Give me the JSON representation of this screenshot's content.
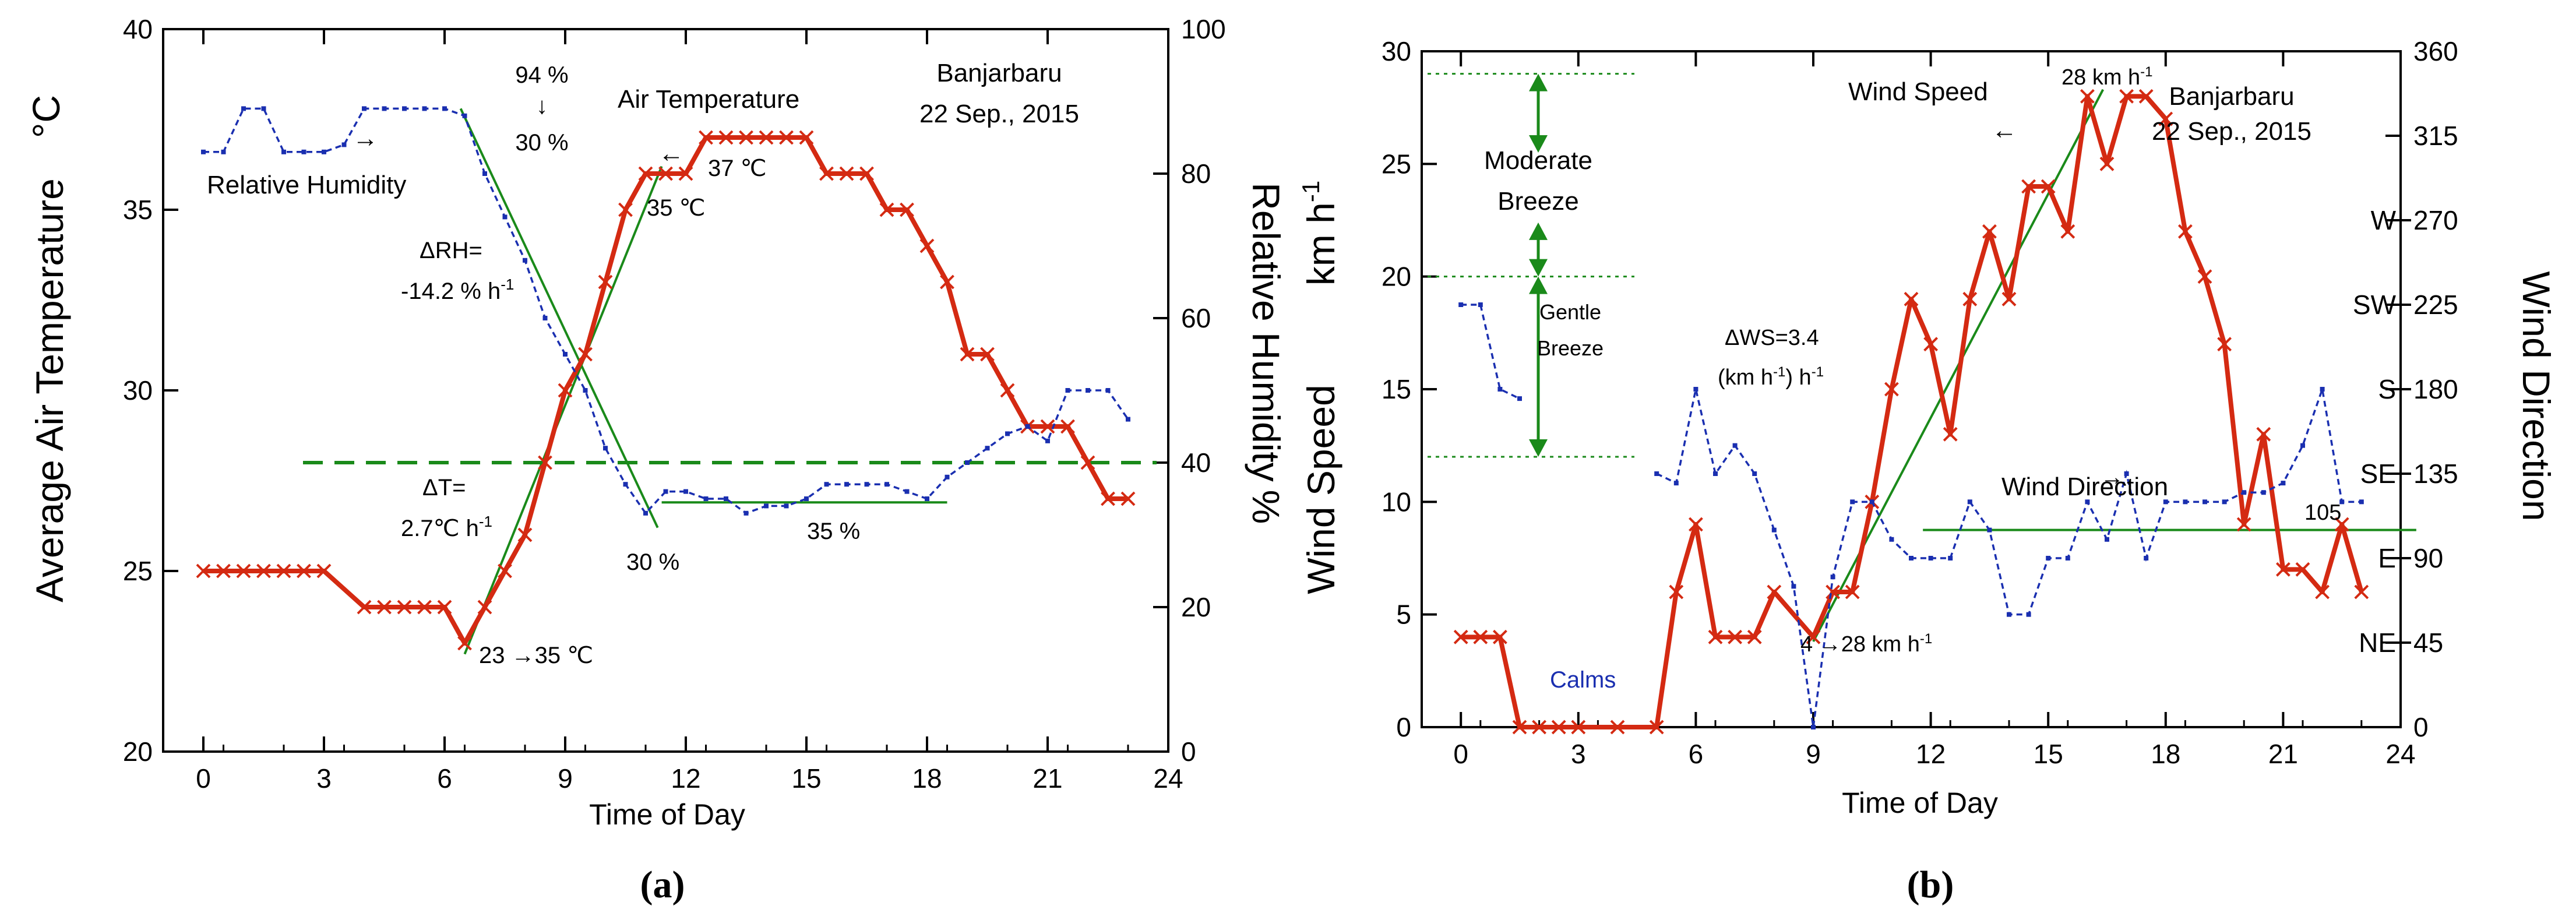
{
  "chart_data": [
    {
      "panel_label": "(a)",
      "type": "line",
      "x_label": "Time of Day",
      "y_left_label": "Average Air Temperature",
      "y_left_unit": "°C",
      "y_right_label": "Relative Humidity",
      "y_right_unit": "%",
      "xlim": [
        -1,
        24
      ],
      "ylim_left": [
        20,
        40
      ],
      "ylim_right": [
        0,
        100
      ],
      "x_ticks": [
        "0",
        "3",
        "6",
        "9",
        "12",
        "15",
        "18",
        "21",
        "24"
      ],
      "y_left_ticks": [
        "20",
        "25",
        "30",
        "35",
        "40"
      ],
      "y_right_ticks": [
        "0",
        "20",
        "40",
        "60",
        "80",
        "100"
      ],
      "location": "Banjarbaru",
      "date": "22 Sep., 2015",
      "series": [
        {
          "name": "Air Temperature",
          "axis": "left",
          "color": "#d42a12",
          "marker": "x",
          "x": [
            0,
            0.5,
            1,
            1.5,
            2,
            2.5,
            3,
            4,
            4.5,
            5,
            5.5,
            6,
            6.5,
            7,
            7.5,
            8,
            8.5,
            9,
            9.5,
            10,
            10.5,
            11,
            11.5,
            12,
            12.5,
            13,
            13.5,
            14,
            14.5,
            15,
            15.5,
            16,
            16.5,
            17,
            17.5,
            18,
            18.5,
            19,
            19.5,
            20,
            20.5,
            21,
            21.5,
            22,
            22.5,
            23
          ],
          "y": [
            25,
            25,
            25,
            25,
            25,
            25,
            25,
            24,
            24,
            24,
            24,
            24,
            23,
            24,
            25,
            26,
            28,
            30,
            31,
            33,
            35,
            36,
            36,
            36,
            37,
            37,
            37,
            37,
            37,
            37,
            36,
            36,
            36,
            35,
            35,
            34,
            33,
            31,
            31,
            30,
            29,
            29,
            29,
            28,
            27,
            27
          ]
        },
        {
          "name": "Relative Humidity",
          "axis": "right",
          "color": "#1a2fb0",
          "marker": "dot",
          "x": [
            0,
            0.5,
            1,
            1.5,
            2,
            2.5,
            3,
            3.5,
            4,
            4.5,
            5,
            5.5,
            6,
            6.5,
            7,
            7.5,
            8,
            8.5,
            9,
            9.5,
            10,
            10.5,
            11,
            11.5,
            12,
            12.5,
            13,
            13.5,
            14,
            14.5,
            15,
            15.5,
            16,
            16.5,
            17,
            17.5,
            18,
            18.5,
            19,
            19.5,
            20,
            20.5,
            21,
            21.5,
            22,
            22.5,
            23
          ],
          "y": [
            83,
            83,
            89,
            89,
            83,
            83,
            83,
            84,
            89,
            89,
            89,
            89,
            89,
            88,
            80,
            74,
            68,
            60,
            55,
            50,
            42,
            37,
            33,
            36,
            36,
            35,
            35,
            33,
            34,
            34,
            35,
            37,
            37,
            37,
            37,
            36,
            35,
            38,
            40,
            42,
            44,
            45,
            43,
            50,
            50,
            50,
            46
          ]
        }
      ],
      "reference_lines": [
        {
          "kind": "dashed",
          "color": "#1a8a1a",
          "y_left": 28
        }
      ],
      "annotations": {
        "relative_humidity": "Relative Humidity",
        "air_temperature": "Air Temperature",
        "rh_change_a": "94 %",
        "down_arrow": "↓",
        "rh_change_b": "30 %",
        "t_peak": "37 ℃",
        "t_35": "35 ℃",
        "d_rh_label": "ΔRH=",
        "d_rh_value": "-14.2 % h",
        "d_rh_exp": "-1",
        "d_t_label": "ΔT=",
        "d_t_value": "2.7℃ h",
        "d_t_exp": "-1",
        "rh_30": "30 %",
        "rh_35": "35 %",
        "t_range": "23 →35 ℃",
        "right_arrow": "→",
        "left_arrow": "←"
      }
    },
    {
      "panel_label": "(b)",
      "type": "line",
      "x_label": "Time of Day",
      "y_left_label": "Wind Speed",
      "y_left_unit": "km h",
      "y_left_unit_exp": "-1",
      "y_right_label": "Wind Direction",
      "xlim": [
        -1,
        24
      ],
      "ylim_left": [
        0,
        30
      ],
      "ylim_right": [
        0,
        360
      ],
      "x_ticks": [
        "0",
        "3",
        "6",
        "9",
        "12",
        "15",
        "18",
        "21",
        "24"
      ],
      "y_left_ticks": [
        "0",
        "5",
        "10",
        "15",
        "20",
        "25",
        "30"
      ],
      "y_right_ticks": [
        "0",
        "45",
        "90",
        "135",
        "180",
        "225",
        "270",
        "315",
        "360"
      ],
      "y_right_directions": [
        {
          "label": "NE",
          "value": 45
        },
        {
          "label": "E",
          "value": 90
        },
        {
          "label": "SE",
          "value": 135
        },
        {
          "label": "S",
          "value": 180
        },
        {
          "label": "SW",
          "value": 225
        },
        {
          "label": "W",
          "value": 270
        }
      ],
      "location": "Banjarbaru",
      "date": "22 Sep., 2015",
      "series": [
        {
          "name": "Wind Speed",
          "axis": "left",
          "color": "#d42a12",
          "marker": "x",
          "x": [
            0,
            0.5,
            1,
            1.5,
            2,
            2.5,
            3,
            4,
            5,
            5.5,
            6,
            6.5,
            7,
            7.5,
            8,
            9,
            9.5,
            10,
            10.5,
            11,
            11.5,
            12,
            12.5,
            13,
            13.5,
            14,
            14.5,
            15,
            15.5,
            16,
            16.5,
            17,
            17.5,
            18,
            18.5,
            19,
            19.5,
            20,
            20.5,
            21,
            21.5,
            22,
            22.5,
            23
          ],
          "y": [
            4,
            4,
            4,
            0,
            0,
            0,
            0,
            0,
            0,
            6,
            9,
            4,
            4,
            4,
            6,
            4,
            6,
            6,
            10,
            15,
            19,
            17,
            13,
            19,
            22,
            19,
            24,
            24,
            22,
            28,
            25,
            28,
            28,
            27,
            22,
            20,
            17,
            9,
            13,
            7,
            7,
            6,
            9,
            6
          ]
        },
        {
          "name": "Wind Direction",
          "axis": "right",
          "color": "#1a2fb0",
          "marker": "dot",
          "x": [
            0,
            0.5,
            1,
            1.5,
            5,
            5.5,
            6,
            6.5,
            7,
            7.5,
            8,
            8.5,
            9,
            9.5,
            10,
            10.5,
            11,
            11.5,
            12,
            12.5,
            13,
            13.5,
            14,
            14.5,
            15,
            15.5,
            16,
            16.5,
            17,
            17.5,
            18,
            18.5,
            19,
            19.5,
            20,
            20.5,
            21,
            21.5,
            22,
            22.5,
            23
          ],
          "y": [
            225,
            225,
            180,
            175,
            135,
            130,
            180,
            135,
            150,
            135,
            105,
            75,
            0,
            80,
            120,
            120,
            100,
            90,
            90,
            90,
            120,
            105,
            60,
            60,
            90,
            90,
            120,
            100,
            135,
            90,
            120,
            120,
            120,
            120,
            125,
            125,
            130,
            150,
            180,
            120,
            120
          ]
        }
      ],
      "reference_lines": [
        {
          "kind": "horizontal",
          "color": "#1a8a1a",
          "y_right": 105,
          "label": "105"
        }
      ],
      "breeze_bands": [
        {
          "name": "Moderate Breeze",
          "line1": "Moderate",
          "line2": "Breeze",
          "from": 20,
          "to": 29
        },
        {
          "name": "Gentle Breeze",
          "line1": "Gentle",
          "line2": "Breeze",
          "from": 12,
          "to": 20
        }
      ],
      "annotations": {
        "wind_speed": "Wind Speed",
        "left_arrow": "←",
        "peak": "28 km h",
        "peak_exp": "-1",
        "d_ws_a": "ΔWS=3.4",
        "d_ws_b": "(km h",
        "d_ws_b_exp": "-1",
        "d_ws_b_tail": ") h",
        "d_ws_b_tail_exp": "-1",
        "wind_direction": "Wind Direction",
        "right_arrow": "→",
        "ws_range": "4 →28 km h",
        "ws_range_exp": "-1",
        "calms": "Calms"
      }
    }
  ]
}
